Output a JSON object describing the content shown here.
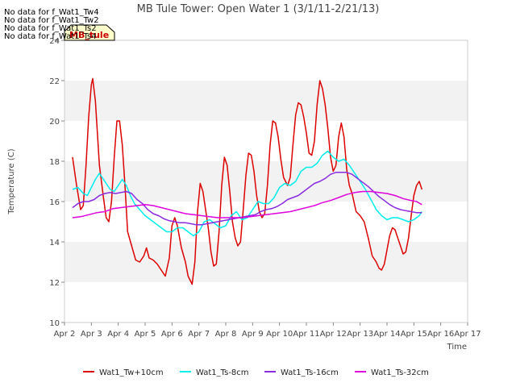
{
  "chart_data": {
    "type": "line",
    "title": "MB Tule Tower: Open Water 1 (3/1/11-2/21/13)",
    "xlabel": "Time",
    "ylabel": "Temperature (C)",
    "ylim": [
      10,
      24
    ],
    "yticks": [
      10,
      12,
      14,
      16,
      18,
      20,
      22,
      24
    ],
    "xlim": [
      2,
      17
    ],
    "xticks": [
      2,
      3,
      4,
      5,
      6,
      7,
      8,
      9,
      10,
      11,
      12,
      13,
      14,
      15,
      16,
      17
    ],
    "xtick_labels": [
      "Apr 2",
      "Apr 3",
      "Apr 4",
      "Apr 5",
      "Apr 6",
      "Apr 7",
      "Apr 8",
      "Apr 9",
      "Apr 10",
      "Apr 11",
      "Apr 12",
      "Apr 13",
      "Apr 14",
      "Apr 15",
      "Apr 16",
      "Apr 17"
    ],
    "grid": "horizontal-bands",
    "legend_position": "bottom",
    "no_data_messages": [
      "No data for f_Wat1_Tw4",
      "No data for f_Wat1_Tw2",
      "No data for f_Wat1_Ts2",
      "No data for f_Wat1_Ts4"
    ],
    "annotation": "MB_tule",
    "series": [
      {
        "name": "Wat1_Tw+10cm",
        "color": "#dd0000",
        "points": [
          [
            2.3,
            18.2
          ],
          [
            2.45,
            16.8
          ],
          [
            2.6,
            15.6
          ],
          [
            2.7,
            15.8
          ],
          [
            2.8,
            17.8
          ],
          [
            2.9,
            20.2
          ],
          [
            3.0,
            21.8
          ],
          [
            3.05,
            22.1
          ],
          [
            3.15,
            21.0
          ],
          [
            3.3,
            17.8
          ],
          [
            3.45,
            16.2
          ],
          [
            3.55,
            15.2
          ],
          [
            3.65,
            15.0
          ],
          [
            3.75,
            16.0
          ],
          [
            3.85,
            18.2
          ],
          [
            3.95,
            20.0
          ],
          [
            4.05,
            20.0
          ],
          [
            4.15,
            18.8
          ],
          [
            4.25,
            16.8
          ],
          [
            4.35,
            14.5
          ],
          [
            4.5,
            13.8
          ],
          [
            4.65,
            13.1
          ],
          [
            4.8,
            13.0
          ],
          [
            4.95,
            13.3
          ],
          [
            5.05,
            13.7
          ],
          [
            5.15,
            13.2
          ],
          [
            5.3,
            13.1
          ],
          [
            5.45,
            12.9
          ],
          [
            5.6,
            12.6
          ],
          [
            5.75,
            12.3
          ],
          [
            5.9,
            13.2
          ],
          [
            6.0,
            14.8
          ],
          [
            6.1,
            15.2
          ],
          [
            6.2,
            14.8
          ],
          [
            6.35,
            13.7
          ],
          [
            6.5,
            13.0
          ],
          [
            6.6,
            12.3
          ],
          [
            6.75,
            11.9
          ],
          [
            6.85,
            13.0
          ],
          [
            6.95,
            15.5
          ],
          [
            7.05,
            16.9
          ],
          [
            7.15,
            16.5
          ],
          [
            7.25,
            15.6
          ],
          [
            7.35,
            14.7
          ],
          [
            7.45,
            13.5
          ],
          [
            7.55,
            12.8
          ],
          [
            7.65,
            12.9
          ],
          [
            7.75,
            14.5
          ],
          [
            7.85,
            16.8
          ],
          [
            7.95,
            18.2
          ],
          [
            8.05,
            17.8
          ],
          [
            8.15,
            16.5
          ],
          [
            8.25,
            15.0
          ],
          [
            8.35,
            14.2
          ],
          [
            8.45,
            13.8
          ],
          [
            8.55,
            14.0
          ],
          [
            8.65,
            15.6
          ],
          [
            8.75,
            17.3
          ],
          [
            8.85,
            18.4
          ],
          [
            8.95,
            18.3
          ],
          [
            9.05,
            17.5
          ],
          [
            9.15,
            16.3
          ],
          [
            9.25,
            15.5
          ],
          [
            9.35,
            15.2
          ],
          [
            9.45,
            15.4
          ],
          [
            9.55,
            16.8
          ],
          [
            9.65,
            18.8
          ],
          [
            9.75,
            20.0
          ],
          [
            9.85,
            19.9
          ],
          [
            9.95,
            19.2
          ],
          [
            10.05,
            18.1
          ],
          [
            10.15,
            17.2
          ],
          [
            10.3,
            16.8
          ],
          [
            10.4,
            17.2
          ],
          [
            10.5,
            18.8
          ],
          [
            10.6,
            20.3
          ],
          [
            10.7,
            20.9
          ],
          [
            10.8,
            20.8
          ],
          [
            10.9,
            20.2
          ],
          [
            11.0,
            19.4
          ],
          [
            11.1,
            18.4
          ],
          [
            11.2,
            18.3
          ],
          [
            11.3,
            19.0
          ],
          [
            11.4,
            20.8
          ],
          [
            11.5,
            22.0
          ],
          [
            11.6,
            21.6
          ],
          [
            11.7,
            20.8
          ],
          [
            11.8,
            19.6
          ],
          [
            11.9,
            18.2
          ],
          [
            12.0,
            17.5
          ],
          [
            12.1,
            17.8
          ],
          [
            12.2,
            19.2
          ],
          [
            12.3,
            19.9
          ],
          [
            12.4,
            19.2
          ],
          [
            12.5,
            17.6
          ],
          [
            12.6,
            16.8
          ],
          [
            12.7,
            16.4
          ],
          [
            12.85,
            15.5
          ],
          [
            13.0,
            15.3
          ],
          [
            13.15,
            15.0
          ],
          [
            13.3,
            14.2
          ],
          [
            13.45,
            13.3
          ],
          [
            13.6,
            13.0
          ],
          [
            13.7,
            12.7
          ],
          [
            13.8,
            12.6
          ],
          [
            13.9,
            12.9
          ],
          [
            14.0,
            13.6
          ],
          [
            14.1,
            14.3
          ],
          [
            14.2,
            14.7
          ],
          [
            14.3,
            14.6
          ],
          [
            14.4,
            14.2
          ],
          [
            14.5,
            13.8
          ],
          [
            14.6,
            13.4
          ],
          [
            14.7,
            13.5
          ],
          [
            14.8,
            14.2
          ],
          [
            14.9,
            15.3
          ],
          [
            15.0,
            16.3
          ],
          [
            15.1,
            16.8
          ],
          [
            15.2,
            17.0
          ],
          [
            15.3,
            16.6
          ]
        ]
      },
      {
        "name": "Wat1_Ts-8cm",
        "color": "#00eeee",
        "points": [
          [
            2.3,
            16.6
          ],
          [
            2.5,
            16.7
          ],
          [
            2.7,
            16.4
          ],
          [
            2.85,
            16.3
          ],
          [
            3.0,
            16.7
          ],
          [
            3.15,
            17.1
          ],
          [
            3.3,
            17.4
          ],
          [
            3.5,
            17.0
          ],
          [
            3.7,
            16.6
          ],
          [
            3.85,
            16.5
          ],
          [
            4.0,
            16.8
          ],
          [
            4.15,
            17.1
          ],
          [
            4.3,
            16.8
          ],
          [
            4.45,
            16.3
          ],
          [
            4.6,
            15.9
          ],
          [
            4.8,
            15.6
          ],
          [
            5.0,
            15.3
          ],
          [
            5.2,
            15.1
          ],
          [
            5.4,
            14.9
          ],
          [
            5.6,
            14.7
          ],
          [
            5.8,
            14.5
          ],
          [
            6.0,
            14.5
          ],
          [
            6.2,
            14.7
          ],
          [
            6.4,
            14.7
          ],
          [
            6.6,
            14.5
          ],
          [
            6.8,
            14.3
          ],
          [
            7.0,
            14.5
          ],
          [
            7.2,
            15.0
          ],
          [
            7.4,
            15.1
          ],
          [
            7.6,
            14.9
          ],
          [
            7.8,
            14.7
          ],
          [
            8.0,
            14.8
          ],
          [
            8.2,
            15.3
          ],
          [
            8.4,
            15.5
          ],
          [
            8.6,
            15.1
          ],
          [
            8.8,
            15.2
          ],
          [
            9.0,
            15.6
          ],
          [
            9.2,
            16.0
          ],
          [
            9.4,
            15.9
          ],
          [
            9.6,
            15.9
          ],
          [
            9.8,
            16.2
          ],
          [
            10.0,
            16.7
          ],
          [
            10.2,
            16.9
          ],
          [
            10.4,
            16.8
          ],
          [
            10.6,
            17.0
          ],
          [
            10.8,
            17.5
          ],
          [
            11.0,
            17.7
          ],
          [
            11.2,
            17.7
          ],
          [
            11.4,
            17.9
          ],
          [
            11.6,
            18.3
          ],
          [
            11.8,
            18.5
          ],
          [
            12.0,
            18.2
          ],
          [
            12.2,
            18.0
          ],
          [
            12.4,
            18.1
          ],
          [
            12.6,
            17.8
          ],
          [
            12.8,
            17.4
          ],
          [
            13.0,
            17.0
          ],
          [
            13.2,
            16.6
          ],
          [
            13.4,
            16.1
          ],
          [
            13.6,
            15.6
          ],
          [
            13.8,
            15.3
          ],
          [
            14.0,
            15.1
          ],
          [
            14.2,
            15.2
          ],
          [
            14.4,
            15.2
          ],
          [
            14.6,
            15.1
          ],
          [
            14.8,
            15.0
          ],
          [
            15.0,
            15.1
          ],
          [
            15.2,
            15.3
          ],
          [
            15.3,
            15.5
          ]
        ]
      },
      {
        "name": "Wat1_Ts-16cm",
        "color": "#8a2be2",
        "points": [
          [
            2.3,
            15.7
          ],
          [
            2.5,
            15.9
          ],
          [
            2.7,
            16.0
          ],
          [
            2.9,
            16.0
          ],
          [
            3.1,
            16.1
          ],
          [
            3.3,
            16.3
          ],
          [
            3.5,
            16.4
          ],
          [
            3.7,
            16.45
          ],
          [
            3.9,
            16.4
          ],
          [
            4.1,
            16.45
          ],
          [
            4.3,
            16.5
          ],
          [
            4.5,
            16.4
          ],
          [
            4.7,
            16.1
          ],
          [
            4.9,
            15.9
          ],
          [
            5.1,
            15.6
          ],
          [
            5.3,
            15.4
          ],
          [
            5.5,
            15.3
          ],
          [
            5.7,
            15.15
          ],
          [
            5.9,
            15.05
          ],
          [
            6.1,
            15.0
          ],
          [
            6.3,
            14.95
          ],
          [
            6.5,
            14.95
          ],
          [
            6.7,
            14.9
          ],
          [
            6.9,
            14.85
          ],
          [
            7.1,
            14.85
          ],
          [
            7.3,
            14.9
          ],
          [
            7.5,
            14.95
          ],
          [
            7.7,
            15.0
          ],
          [
            7.9,
            15.05
          ],
          [
            8.1,
            15.1
          ],
          [
            8.3,
            15.15
          ],
          [
            8.5,
            15.2
          ],
          [
            8.7,
            15.25
          ],
          [
            8.9,
            15.3
          ],
          [
            9.1,
            15.35
          ],
          [
            9.3,
            15.5
          ],
          [
            9.5,
            15.6
          ],
          [
            9.7,
            15.65
          ],
          [
            9.9,
            15.75
          ],
          [
            10.1,
            15.9
          ],
          [
            10.3,
            16.1
          ],
          [
            10.5,
            16.2
          ],
          [
            10.7,
            16.3
          ],
          [
            10.9,
            16.5
          ],
          [
            11.1,
            16.7
          ],
          [
            11.3,
            16.9
          ],
          [
            11.5,
            17.0
          ],
          [
            11.7,
            17.15
          ],
          [
            11.9,
            17.35
          ],
          [
            12.1,
            17.45
          ],
          [
            12.3,
            17.45
          ],
          [
            12.5,
            17.45
          ],
          [
            12.7,
            17.35
          ],
          [
            12.9,
            17.15
          ],
          [
            13.1,
            16.95
          ],
          [
            13.3,
            16.75
          ],
          [
            13.5,
            16.5
          ],
          [
            13.7,
            16.25
          ],
          [
            13.9,
            16.05
          ],
          [
            14.1,
            15.85
          ],
          [
            14.3,
            15.7
          ],
          [
            14.5,
            15.6
          ],
          [
            14.7,
            15.55
          ],
          [
            14.9,
            15.5
          ],
          [
            15.1,
            15.45
          ],
          [
            15.3,
            15.45
          ]
        ]
      },
      {
        "name": "Wat1_Ts-32cm",
        "color": "#dd00dd",
        "points": [
          [
            2.3,
            15.2
          ],
          [
            2.6,
            15.25
          ],
          [
            2.9,
            15.35
          ],
          [
            3.2,
            15.45
          ],
          [
            3.5,
            15.5
          ],
          [
            3.8,
            15.65
          ],
          [
            4.1,
            15.7
          ],
          [
            4.4,
            15.75
          ],
          [
            4.7,
            15.8
          ],
          [
            5.0,
            15.85
          ],
          [
            5.3,
            15.8
          ],
          [
            5.6,
            15.7
          ],
          [
            5.9,
            15.6
          ],
          [
            6.2,
            15.5
          ],
          [
            6.5,
            15.4
          ],
          [
            6.8,
            15.35
          ],
          [
            7.1,
            15.3
          ],
          [
            7.4,
            15.25
          ],
          [
            7.7,
            15.2
          ],
          [
            8.0,
            15.2
          ],
          [
            8.3,
            15.2
          ],
          [
            8.6,
            15.2
          ],
          [
            8.9,
            15.25
          ],
          [
            9.2,
            15.3
          ],
          [
            9.5,
            15.35
          ],
          [
            9.8,
            15.4
          ],
          [
            10.1,
            15.45
          ],
          [
            10.4,
            15.5
          ],
          [
            10.7,
            15.6
          ],
          [
            11.0,
            15.7
          ],
          [
            11.3,
            15.8
          ],
          [
            11.6,
            15.95
          ],
          [
            11.9,
            16.05
          ],
          [
            12.2,
            16.2
          ],
          [
            12.5,
            16.35
          ],
          [
            12.8,
            16.45
          ],
          [
            13.1,
            16.5
          ],
          [
            13.4,
            16.5
          ],
          [
            13.7,
            16.45
          ],
          [
            14.0,
            16.4
          ],
          [
            14.3,
            16.3
          ],
          [
            14.6,
            16.15
          ],
          [
            14.9,
            16.05
          ],
          [
            15.1,
            16.0
          ],
          [
            15.3,
            15.85
          ]
        ]
      }
    ]
  }
}
